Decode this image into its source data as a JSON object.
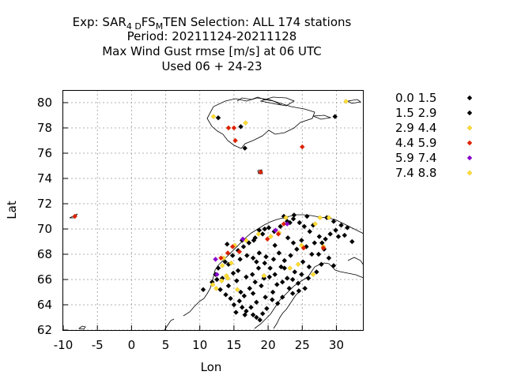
{
  "chart_data": {
    "type": "scatter",
    "title_lines": [
      {
        "pre": "Exp: SAR",
        "sub1": "4 D",
        "mid": "FS",
        "sub2": "M",
        "post": "TEN   Selection: ALL    174 stations"
      },
      {
        "text": "Period: 20211124-20211128"
      },
      {
        "text": "Max Wind Gust rmse [m/s] at  06 UTC"
      },
      {
        "text": "Used  06 + 24-23"
      }
    ],
    "xlabel": "Lon",
    "ylabel": "Lat",
    "xlim": [
      -10,
      34
    ],
    "ylim": [
      62,
      81
    ],
    "xticks": [
      -10,
      -5,
      0,
      5,
      10,
      15,
      20,
      25,
      30
    ],
    "yticks": [
      62,
      64,
      66,
      68,
      70,
      72,
      74,
      76,
      78,
      80
    ],
    "grid": true,
    "legend_position": "right",
    "series": [
      {
        "name": "0.0 1.5",
        "color": "#000000",
        "points": [
          [
            11.8,
            65.8
          ],
          [
            12.5,
            66.0
          ],
          [
            13.0,
            65.2
          ],
          [
            13.8,
            64.8
          ],
          [
            14.2,
            65.5
          ],
          [
            15.0,
            64.0
          ],
          [
            15.8,
            64.3
          ],
          [
            16.2,
            63.8
          ],
          [
            16.8,
            63.5
          ],
          [
            17.5,
            63.8
          ],
          [
            17.8,
            63.2
          ],
          [
            18.3,
            63.0
          ],
          [
            18.8,
            62.8
          ],
          [
            19.2,
            63.3
          ],
          [
            19.8,
            63.7
          ],
          [
            18.3,
            64.2
          ],
          [
            16.5,
            64.7
          ],
          [
            17.8,
            64.9
          ],
          [
            19.6,
            64.6
          ],
          [
            20.7,
            65.0
          ],
          [
            21.3,
            65.6
          ],
          [
            22.1,
            65.8
          ],
          [
            22.8,
            66.1
          ],
          [
            23.6,
            66.0
          ],
          [
            24.4,
            65.7
          ],
          [
            21.0,
            66.4
          ],
          [
            20.3,
            66.9
          ],
          [
            19.5,
            67.3
          ],
          [
            18.6,
            66.9
          ],
          [
            17.7,
            66.4
          ],
          [
            16.8,
            66.2
          ],
          [
            15.4,
            65.9
          ],
          [
            14.9,
            66.5
          ],
          [
            14.2,
            67.2
          ],
          [
            15.9,
            67.6
          ],
          [
            16.9,
            67.9
          ],
          [
            17.8,
            67.7
          ],
          [
            18.7,
            68.1
          ],
          [
            19.7,
            67.8
          ],
          [
            20.8,
            67.6
          ],
          [
            21.6,
            68.1
          ],
          [
            22.4,
            67.5
          ],
          [
            23.3,
            67.9
          ],
          [
            24.2,
            68.4
          ],
          [
            25.1,
            67.4
          ],
          [
            26.0,
            67.0
          ],
          [
            27.1,
            66.6
          ],
          [
            27.8,
            67.2
          ],
          [
            26.4,
            68.0
          ],
          [
            25.6,
            68.6
          ],
          [
            26.8,
            68.9
          ],
          [
            27.5,
            69.4
          ],
          [
            28.4,
            69.2
          ],
          [
            29.1,
            69.6
          ],
          [
            29.9,
            69.9
          ],
          [
            30.7,
            70.3
          ],
          [
            31.6,
            70.1
          ],
          [
            26.1,
            69.8
          ],
          [
            25.3,
            70.2
          ],
          [
            24.6,
            70.5
          ],
          [
            23.7,
            70.8
          ],
          [
            22.8,
            70.6
          ],
          [
            21.8,
            70.2
          ],
          [
            20.9,
            69.8
          ],
          [
            20.1,
            70.1
          ],
          [
            19.2,
            69.6
          ],
          [
            18.7,
            69.9
          ],
          [
            18.1,
            69.3
          ],
          [
            17.2,
            68.9
          ],
          [
            16.4,
            68.6
          ],
          [
            15.6,
            68.3
          ],
          [
            14.8,
            67.9
          ],
          [
            13.7,
            67.4
          ],
          [
            12.7,
            66.9
          ],
          [
            12.3,
            66.4
          ],
          [
            13.3,
            66.1
          ],
          [
            21.4,
            64.1
          ],
          [
            20.6,
            64.4
          ],
          [
            22.1,
            64.6
          ],
          [
            23.6,
            64.9
          ],
          [
            24.5,
            65.1
          ],
          [
            25.4,
            65.3
          ],
          [
            23.1,
            65.3
          ],
          [
            19.0,
            65.5
          ],
          [
            18.1,
            65.8
          ],
          [
            17.3,
            65.3
          ],
          [
            16.0,
            65.0
          ],
          [
            14.5,
            64.5
          ],
          [
            15.3,
            63.4
          ],
          [
            16.6,
            63.2
          ],
          [
            22.3,
            71.0
          ],
          [
            23.8,
            71.1
          ],
          [
            25.7,
            71.0
          ],
          [
            28.6,
            70.9
          ],
          [
            29.6,
            70.6
          ],
          [
            32.3,
            69.0
          ],
          [
            31.2,
            69.5
          ],
          [
            30.3,
            69.4
          ],
          [
            28.2,
            68.4
          ],
          [
            27.4,
            68.0
          ],
          [
            28.9,
            67.7
          ],
          [
            29.6,
            67.1
          ],
          [
            24.9,
            66.4
          ],
          [
            25.9,
            66.1
          ],
          [
            23.9,
            66.6
          ],
          [
            22.4,
            66.9
          ],
          [
            21.9,
            67.0
          ],
          [
            20.2,
            66.2
          ],
          [
            19.4,
            66.1
          ],
          [
            18.3,
            67.4
          ],
          [
            15.6,
            66.7
          ],
          [
            14.0,
            68.8
          ],
          [
            16.2,
            69.1
          ],
          [
            19.5,
            70.0
          ],
          [
            22.9,
            69.3
          ],
          [
            24.9,
            69.1
          ],
          [
            26.6,
            70.3
          ],
          [
            17.9,
            69.1
          ],
          [
            23.7,
            68.9
          ],
          [
            21.0,
            68.7
          ],
          [
            10.5,
            65.2
          ],
          [
            16.0,
            78.1
          ],
          [
            16.6,
            76.4
          ],
          [
            12.7,
            78.8
          ]
        ]
      },
      {
        "name": "1.5 2.9",
        "color": "#000000",
        "points": [
          [
            29.8,
            78.9
          ],
          [
            23.2,
            70.5
          ],
          [
            27.9,
            68.9
          ]
        ]
      },
      {
        "name": "2.9 4.4",
        "color": "#ffdd33",
        "points": [
          [
            11.9,
            65.6
          ],
          [
            12.4,
            65.3
          ],
          [
            13.2,
            65.9
          ],
          [
            13.9,
            66.3
          ],
          [
            14.6,
            67.3
          ],
          [
            13.5,
            67.7
          ],
          [
            15.1,
            68.7
          ],
          [
            16.8,
            69.1
          ],
          [
            18.6,
            69.6
          ],
          [
            20.4,
            69.4
          ],
          [
            21.6,
            69.7
          ],
          [
            22.6,
            70.9
          ],
          [
            26.9,
            70.4
          ],
          [
            27.6,
            70.9
          ],
          [
            28.9,
            70.9
          ],
          [
            24.4,
            67.2
          ],
          [
            26.6,
            66.4
          ],
          [
            23.2,
            66.9
          ],
          [
            19.4,
            66.3
          ],
          [
            14.1,
            66.1
          ],
          [
            15.5,
            65.2
          ],
          [
            31.4,
            80.1
          ],
          [
            12.0,
            78.9
          ],
          [
            16.7,
            78.4
          ],
          [
            13.3,
            67.1
          ],
          [
            24.9,
            68.7
          ],
          [
            28.1,
            68.6
          ]
        ]
      },
      {
        "name": "4.4 5.9",
        "color": "#dd2200",
        "points": [
          [
            -8.3,
            71.0
          ],
          [
            18.9,
            74.5
          ],
          [
            25.0,
            76.5
          ],
          [
            14.2,
            78.0
          ],
          [
            15.2,
            77.0
          ],
          [
            13.1,
            67.7
          ],
          [
            14.8,
            68.6
          ],
          [
            15.8,
            68.2
          ],
          [
            14.1,
            68.1
          ],
          [
            21.5,
            69.6
          ],
          [
            25.2,
            68.5
          ],
          [
            28.1,
            68.5
          ],
          [
            22.3,
            70.4
          ],
          [
            19.9,
            69.2
          ],
          [
            15.0,
            78.0
          ]
        ]
      },
      {
        "name": "5.9 7.4",
        "color": "#8800cc",
        "points": [
          [
            12.3,
            67.6
          ],
          [
            16.3,
            69.2
          ],
          [
            21.1,
            69.9
          ],
          [
            12.5,
            66.4
          ],
          [
            22.8,
            70.4
          ]
        ]
      },
      {
        "name": "7.4 8.8",
        "color": "#ffdd33",
        "points": []
      }
    ]
  }
}
